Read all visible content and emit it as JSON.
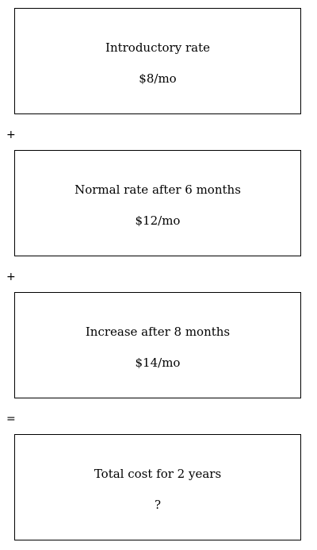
{
  "steps": [
    {
      "title": "Introductory rate",
      "value": "$8/mo"
    },
    {
      "title": "Normal rate after 6 months",
      "value": "$12/mo"
    },
    {
      "title": "Increase after 8 months",
      "value": "$14/mo"
    },
    {
      "title": "Total cost for 2 years",
      "value": "?"
    }
  ],
  "operators": [
    "+",
    "+",
    "="
  ]
}
